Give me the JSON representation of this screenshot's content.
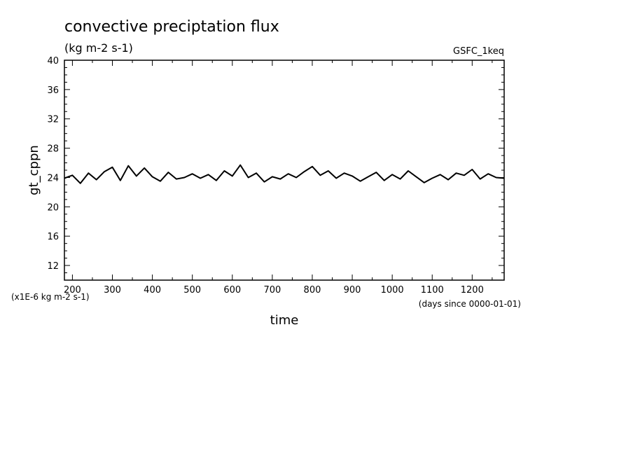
{
  "chart_data": {
    "type": "line",
    "title": "convective preciptation flux",
    "subtitle": "(kg m-2 s-1)",
    "experiment": "GSFC_1keq",
    "xlabel": "time",
    "ylabel": "gt_cppn",
    "x_units": "(days since 0000-01-01)",
    "y_scale_note": "(x1E-6 kg m-2 s-1)",
    "xlim": [
      180,
      1280
    ],
    "ylim": [
      10,
      40
    ],
    "x_ticks": [
      200,
      300,
      400,
      500,
      600,
      700,
      800,
      900,
      1000,
      1100,
      1200
    ],
    "x_tick_labels": [
      "200",
      "300",
      "400",
      "500",
      "600",
      "700",
      "800",
      "900",
      "1000",
      "1100",
      "1200"
    ],
    "y_ticks": [
      12,
      16,
      20,
      24,
      28,
      32,
      36,
      40
    ],
    "y_tick_labels": [
      "12",
      "16",
      "20",
      "24",
      "28",
      "32",
      "36",
      "40"
    ],
    "grid": false,
    "line_color": "#000000",
    "series": [
      {
        "x": [
          180,
          200,
          220,
          240,
          260,
          280,
          300,
          320,
          340,
          360,
          380,
          400,
          420,
          440,
          460,
          480,
          500,
          520,
          540,
          560,
          580,
          600,
          620,
          640,
          660,
          680,
          700,
          720,
          740,
          760,
          780,
          800,
          820,
          840,
          860,
          880,
          900,
          920,
          940,
          960,
          980,
          1000,
          1020,
          1040,
          1060,
          1080,
          1100,
          1120,
          1140,
          1160,
          1180,
          1200,
          1220,
          1240,
          1260,
          1280
        ],
        "values": [
          23.9,
          24.3,
          23.2,
          24.6,
          23.7,
          24.8,
          25.4,
          23.6,
          25.6,
          24.2,
          25.3,
          24.1,
          23.5,
          24.7,
          23.8,
          24.0,
          24.5,
          23.9,
          24.4,
          23.6,
          24.9,
          24.2,
          25.7,
          24.0,
          24.6,
          23.4,
          24.1,
          23.8,
          24.5,
          24.0,
          24.8,
          25.5,
          24.3,
          24.9,
          23.9,
          24.6,
          24.2,
          23.5,
          24.1,
          24.7,
          23.6,
          24.4,
          23.8,
          24.9,
          24.1,
          23.3,
          23.9,
          24.4,
          23.7,
          24.6,
          24.3,
          25.1,
          23.8,
          24.5,
          24.0,
          23.9
        ]
      }
    ]
  }
}
